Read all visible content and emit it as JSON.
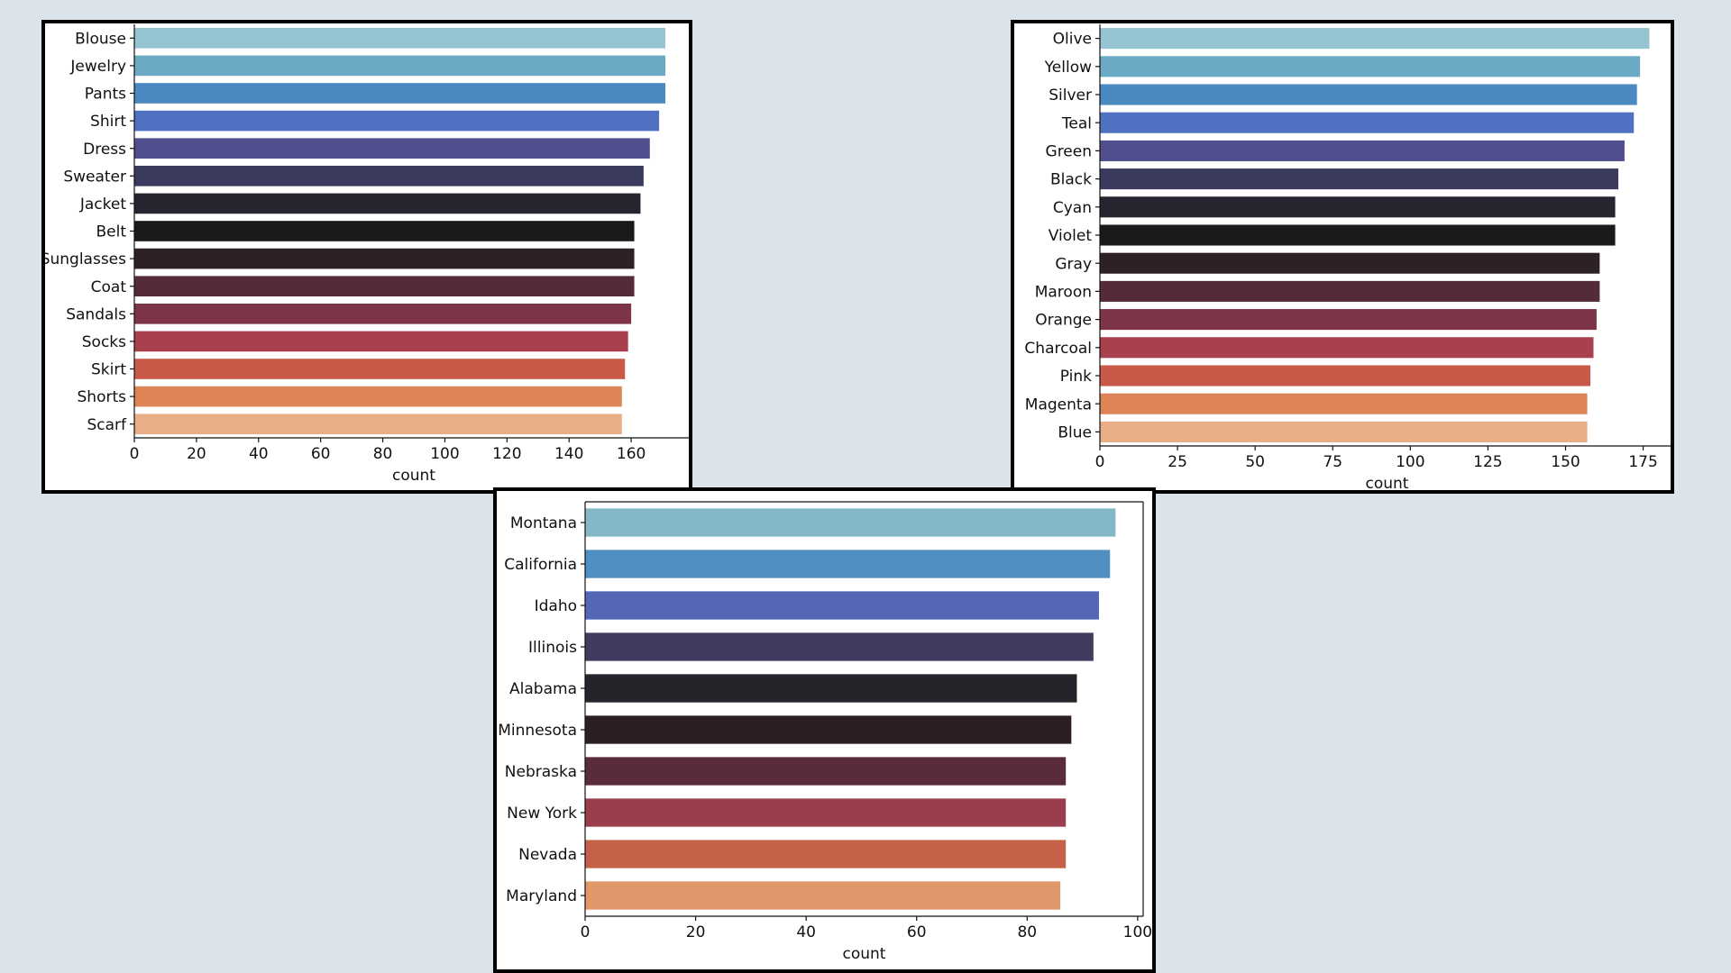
{
  "chart_data": [
    {
      "type": "bar",
      "orientation": "horizontal",
      "categories": [
        "Blouse",
        "Jewelry",
        "Pants",
        "Shirt",
        "Dress",
        "Sweater",
        "Jacket",
        "Belt",
        "Sunglasses",
        "Coat",
        "Sandals",
        "Socks",
        "Skirt",
        "Shorts",
        "Scarf"
      ],
      "values": [
        171,
        171,
        171,
        169,
        166,
        164,
        163,
        161,
        161,
        161,
        160,
        159,
        158,
        157,
        157
      ],
      "xlabel": "count",
      "ylabel": "",
      "xlim": [
        0,
        180
      ],
      "xticks": [
        0,
        20,
        40,
        60,
        80,
        100,
        120,
        140,
        160
      ],
      "colors": [
        "#94c4cf",
        "#6aaac4",
        "#4b8ac0",
        "#5070c2",
        "#514e8d",
        "#3a3a5e",
        "#252530",
        "#1a1a1a",
        "#2e2123",
        "#542b36",
        "#7e3448",
        "#a8404d",
        "#c95a49",
        "#dd8456",
        "#e8ae86"
      ]
    },
    {
      "type": "bar",
      "orientation": "horizontal",
      "categories": [
        "Olive",
        "Yellow",
        "Silver",
        "Teal",
        "Green",
        "Black",
        "Cyan",
        "Violet",
        "Gray",
        "Maroon",
        "Orange",
        "Charcoal",
        "Pink",
        "Magenta",
        "Blue"
      ],
      "values": [
        177,
        174,
        173,
        172,
        169,
        167,
        166,
        166,
        161,
        161,
        160,
        159,
        158,
        157,
        157
      ],
      "xlabel": "count",
      "ylabel": "",
      "xlim": [
        0,
        185
      ],
      "xticks": [
        0,
        25,
        50,
        75,
        100,
        125,
        150,
        175
      ],
      "colors": [
        "#94c4cf",
        "#6aaac4",
        "#4b8ac0",
        "#5070c2",
        "#514e8d",
        "#3a3a5e",
        "#252530",
        "#1a1a1a",
        "#2e2123",
        "#542b36",
        "#7e3448",
        "#a8404d",
        "#c95a49",
        "#dd8456",
        "#e8ae86"
      ]
    },
    {
      "type": "bar",
      "orientation": "horizontal",
      "categories": [
        "Montana",
        "California",
        "Idaho",
        "Illinois",
        "Alabama",
        "Minnesota",
        "Nebraska",
        "New York",
        "Nevada",
        "Maryland"
      ],
      "values": [
        96,
        95,
        93,
        92,
        89,
        88,
        87,
        87,
        87,
        86
      ],
      "xlabel": "count",
      "ylabel": "",
      "xlim": [
        0,
        101
      ],
      "xticks": [
        0,
        20,
        40,
        60,
        80,
        100
      ],
      "colors": [
        "#84b8c8",
        "#4f8fc1",
        "#5466b5",
        "#3f3c60",
        "#232329",
        "#2d1e22",
        "#5a2c3a",
        "#9a3d4d",
        "#c56149",
        "#e0986a"
      ]
    }
  ]
}
